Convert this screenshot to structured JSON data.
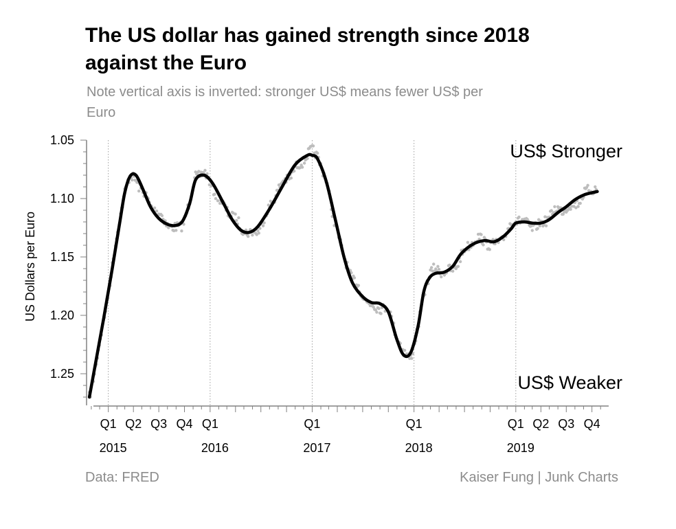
{
  "title": "The US dollar has gained strength since 2018 against the Euro",
  "subtitle": "Note vertical axis is inverted: stronger US$ means fewer US$ per Euro",
  "source": "Data: FRED",
  "credit": "Kaiser Fung | Junk Charts",
  "colors": {
    "line": "#000000",
    "dots": "#bdbdbd",
    "axis": "#808080",
    "gridline": "#9e9e9e",
    "muted_text": "#8c8c8c"
  },
  "chart_data": {
    "type": "line",
    "title": "The US dollar has gained strength since 2018 against the Euro",
    "subtitle": "Note vertical axis is inverted: stronger US$ means fewer US$ per Euro",
    "xlabel": "",
    "ylabel": "US Dollars per Euro",
    "y_inverted": true,
    "ylim": [
      1.05,
      1.27
    ],
    "xlim": [
      "2014-10-15",
      "2019-11-30"
    ],
    "yticks": [
      1.05,
      1.1,
      1.15,
      1.2,
      1.25
    ],
    "ytick_labels": [
      "1.05",
      "1.10",
      "1.15",
      "1.20",
      "1.25"
    ],
    "xticks": [
      {
        "date": "2015-01-01",
        "quarter": "Q1",
        "year": "2015"
      },
      {
        "date": "2015-04-01",
        "quarter": "Q2",
        "year": ""
      },
      {
        "date": "2015-07-01",
        "quarter": "Q3",
        "year": ""
      },
      {
        "date": "2015-10-01",
        "quarter": "Q4",
        "year": ""
      },
      {
        "date": "2016-01-01",
        "quarter": "Q1",
        "year": "2016"
      },
      {
        "date": "2017-01-01",
        "quarter": "Q1",
        "year": "2017"
      },
      {
        "date": "2018-01-01",
        "quarter": "Q1",
        "year": "2018"
      },
      {
        "date": "2019-01-01",
        "quarter": "Q1",
        "year": "2019"
      },
      {
        "date": "2019-04-01",
        "quarter": "Q2",
        "year": ""
      },
      {
        "date": "2019-07-01",
        "quarter": "Q3",
        "year": ""
      },
      {
        "date": "2019-10-01",
        "quarter": "Q4",
        "year": ""
      }
    ],
    "vertical_gridlines": [
      "2015-01-01",
      "2016-01-01",
      "2017-01-01",
      "2018-01-01",
      "2019-01-01"
    ],
    "annotations": [
      {
        "text": "US$ Stronger",
        "position": "top-right"
      },
      {
        "text": "US$ Weaker",
        "position": "bottom-right"
      }
    ],
    "series": [
      {
        "kind": "smoothed trend",
        "x": [
          "2014-10-25",
          "2014-12-15",
          "2015-01-15",
          "2015-02-10",
          "2015-03-01",
          "2015-03-20",
          "2015-04-10",
          "2015-05-05",
          "2015-06-01",
          "2015-07-01",
          "2015-08-01",
          "2015-09-01",
          "2015-09-25",
          "2015-10-20",
          "2015-11-10",
          "2015-12-10",
          "2016-01-10",
          "2016-02-20",
          "2016-03-20",
          "2016-04-20",
          "2016-05-20",
          "2016-06-20",
          "2016-08-01",
          "2016-09-15",
          "2016-11-01",
          "2016-12-15",
          "2017-01-01",
          "2017-01-20",
          "2017-02-20",
          "2017-03-25",
          "2017-04-25",
          "2017-05-25",
          "2017-07-01",
          "2017-08-01",
          "2017-09-01",
          "2017-10-01",
          "2017-11-01",
          "2017-11-25",
          "2017-12-20",
          "2018-01-15",
          "2018-02-05",
          "2018-02-25",
          "2018-03-20",
          "2018-04-20",
          "2018-05-20",
          "2018-06-20",
          "2018-08-01",
          "2018-09-10",
          "2018-10-15",
          "2018-11-15",
          "2018-12-15",
          "2019-01-01",
          "2019-02-01",
          "2019-03-01",
          "2019-04-01",
          "2019-05-01",
          "2019-06-01",
          "2019-07-01",
          "2019-08-01",
          "2019-09-01",
          "2019-10-01",
          "2019-10-20"
        ],
        "y": [
          1.27,
          1.203,
          1.16,
          1.122,
          1.095,
          1.081,
          1.08,
          1.092,
          1.107,
          1.117,
          1.122,
          1.123,
          1.119,
          1.104,
          1.084,
          1.08,
          1.087,
          1.105,
          1.118,
          1.127,
          1.129,
          1.124,
          1.109,
          1.09,
          1.071,
          1.063,
          1.063,
          1.066,
          1.085,
          1.118,
          1.15,
          1.172,
          1.184,
          1.189,
          1.19,
          1.197,
          1.221,
          1.234,
          1.232,
          1.21,
          1.18,
          1.168,
          1.164,
          1.163,
          1.158,
          1.147,
          1.139,
          1.136,
          1.137,
          1.133,
          1.126,
          1.121,
          1.12,
          1.121,
          1.121,
          1.118,
          1.112,
          1.107,
          1.101,
          1.097,
          1.095,
          1.094
        ]
      }
    ]
  }
}
